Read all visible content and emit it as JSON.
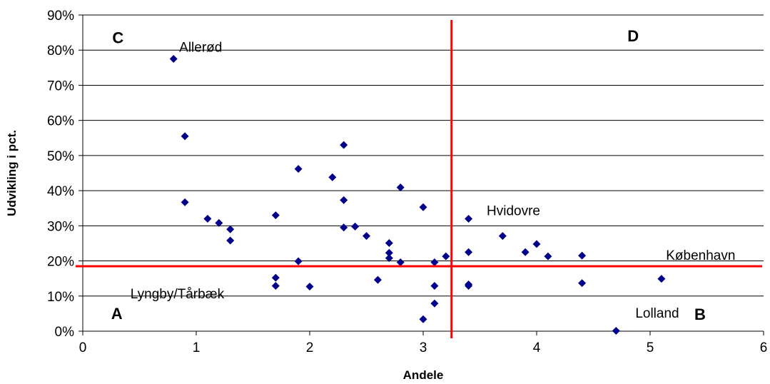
{
  "chart_data": {
    "type": "scatter",
    "xlabel": "Andele",
    "ylabel": "Udvikling i pct.",
    "xlim": [
      0,
      6
    ],
    "ylim": [
      0,
      90
    ],
    "x_ticks": [
      "0",
      "1",
      "2",
      "3",
      "4",
      "5",
      "6"
    ],
    "y_ticks": [
      "0%",
      "10%",
      "20%",
      "30%",
      "40%",
      "50%",
      "60%",
      "70%",
      "80%",
      "90%"
    ],
    "grid": "horizontal",
    "marker_color": "#00008B",
    "line_color": "#FF0000",
    "reference_lines": {
      "x": 3.25,
      "y": 18.5
    },
    "points": [
      {
        "x": 0.8,
        "y": 77.5
      },
      {
        "x": 0.9,
        "y": 55.5
      },
      {
        "x": 0.9,
        "y": 36.7
      },
      {
        "x": 1.1,
        "y": 32.0
      },
      {
        "x": 1.2,
        "y": 30.8
      },
      {
        "x": 1.3,
        "y": 29.0
      },
      {
        "x": 1.3,
        "y": 25.8
      },
      {
        "x": 1.7,
        "y": 33.0
      },
      {
        "x": 1.7,
        "y": 15.2
      },
      {
        "x": 1.7,
        "y": 12.9
      },
      {
        "x": 1.9,
        "y": 46.2
      },
      {
        "x": 1.9,
        "y": 19.9
      },
      {
        "x": 2.0,
        "y": 12.7
      },
      {
        "x": 2.2,
        "y": 43.8
      },
      {
        "x": 2.3,
        "y": 53.0
      },
      {
        "x": 2.3,
        "y": 37.3
      },
      {
        "x": 2.3,
        "y": 29.5
      },
      {
        "x": 2.4,
        "y": 29.8
      },
      {
        "x": 2.5,
        "y": 27.1
      },
      {
        "x": 2.6,
        "y": 14.6
      },
      {
        "x": 2.7,
        "y": 25.1
      },
      {
        "x": 2.7,
        "y": 22.3
      },
      {
        "x": 2.7,
        "y": 20.8
      },
      {
        "x": 2.8,
        "y": 40.9
      },
      {
        "x": 2.8,
        "y": 19.6
      },
      {
        "x": 3.0,
        "y": 35.3
      },
      {
        "x": 3.0,
        "y": 3.4
      },
      {
        "x": 3.1,
        "y": 19.6
      },
      {
        "x": 3.1,
        "y": 12.9
      },
      {
        "x": 3.1,
        "y": 7.9
      },
      {
        "x": 3.2,
        "y": 21.3
      },
      {
        "x": 3.4,
        "y": 32.0
      },
      {
        "x": 3.4,
        "y": 22.5
      },
      {
        "x": 3.4,
        "y": 13.3
      },
      {
        "x": 3.4,
        "y": 12.9
      },
      {
        "x": 3.7,
        "y": 27.1
      },
      {
        "x": 3.9,
        "y": 22.5
      },
      {
        "x": 4.0,
        "y": 24.8
      },
      {
        "x": 4.1,
        "y": 21.3
      },
      {
        "x": 4.4,
        "y": 21.5
      },
      {
        "x": 4.4,
        "y": 13.7
      },
      {
        "x": 4.7,
        "y": 0.1
      },
      {
        "x": 5.1,
        "y": 14.9
      }
    ],
    "point_labels": [
      {
        "text": "Allerød",
        "x": 0.85,
        "y": 79.5
      },
      {
        "text": "Hvidovre",
        "x": 3.56,
        "y": 33.0
      },
      {
        "text": "København",
        "x": 5.14,
        "y": 20.3
      },
      {
        "text": "Lyngby/Tårbæk",
        "x": 0.42,
        "y": 9.3
      },
      {
        "text": "Lolland",
        "x": 4.87,
        "y": 3.9
      }
    ],
    "quadrant_labels": [
      {
        "text": "C",
        "x": 0.26,
        "y": 82.0
      },
      {
        "text": "D",
        "x": 4.8,
        "y": 82.5
      },
      {
        "text": "A",
        "x": 0.25,
        "y": 3.5
      },
      {
        "text": "B",
        "x": 5.39,
        "y": 3.3
      }
    ]
  }
}
